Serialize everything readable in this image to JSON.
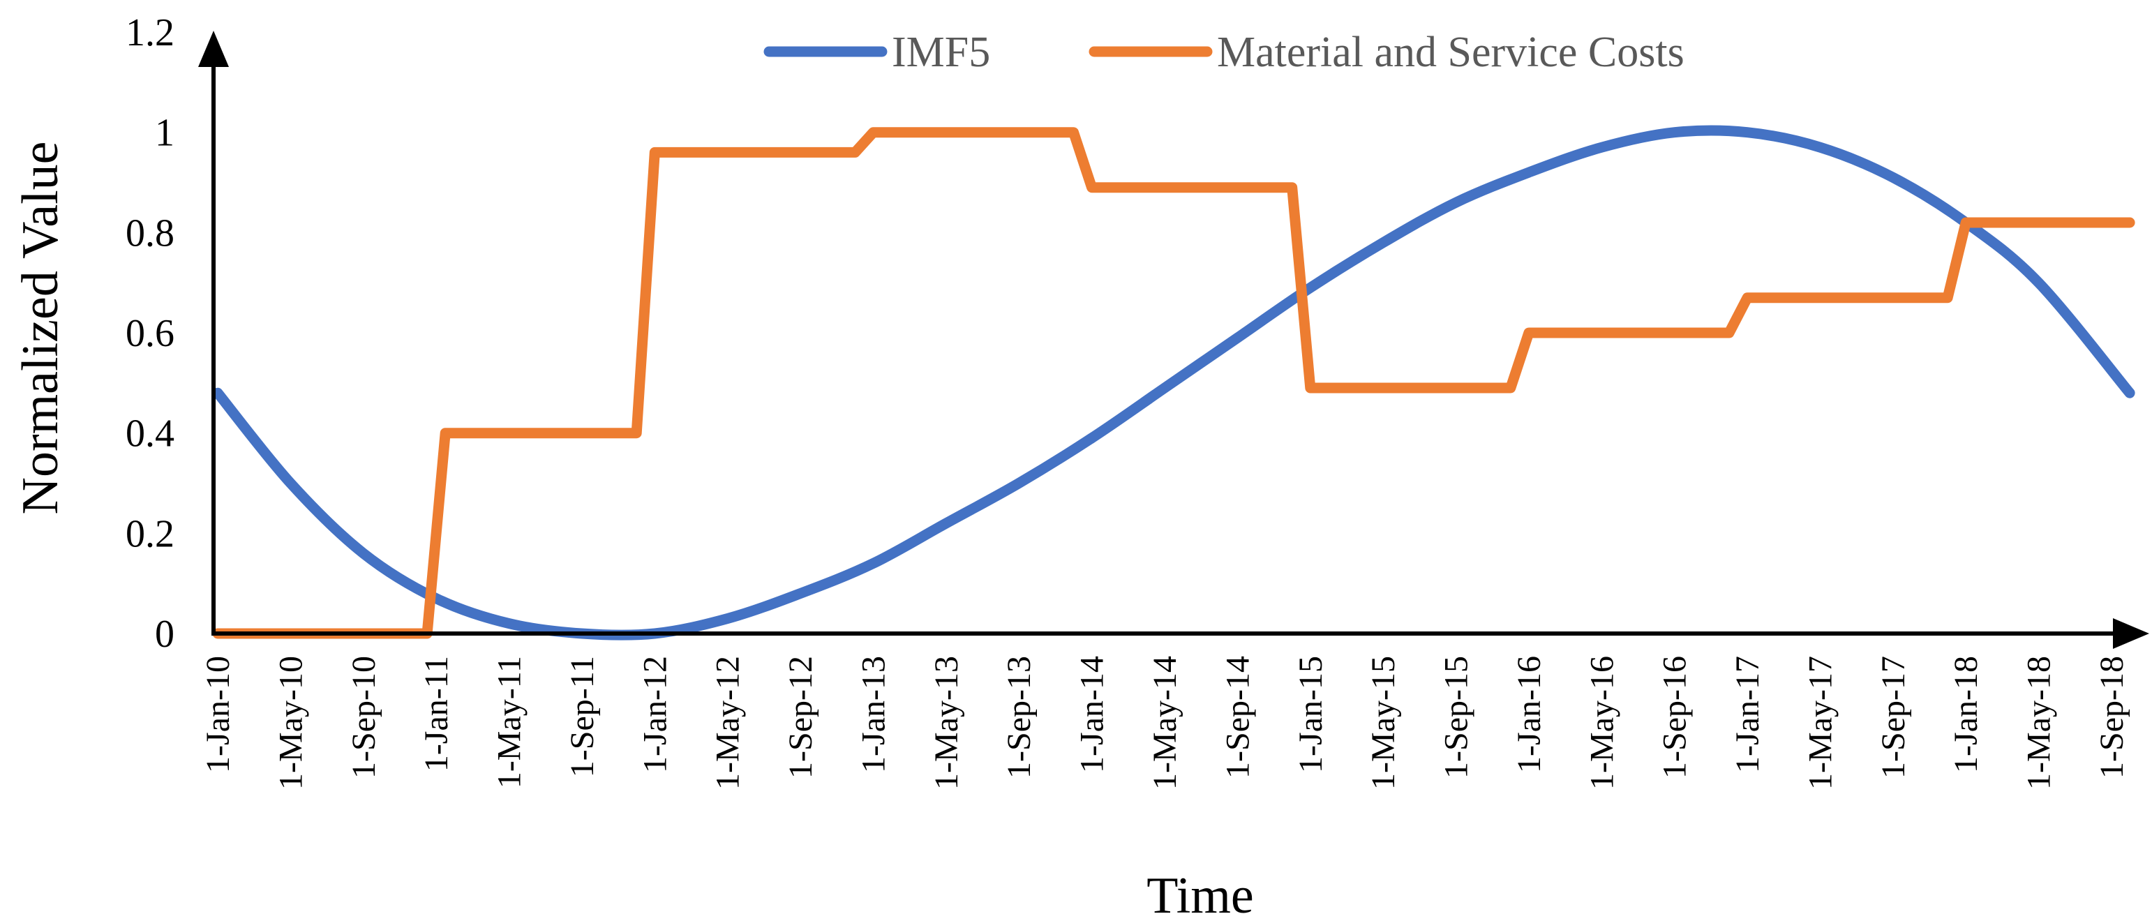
{
  "chart_data": {
    "type": "line",
    "title": "",
    "xlabel": "Time",
    "ylabel": "Normalized Value",
    "ylim": [
      0,
      1.2
    ],
    "y_ticks": [
      "0",
      "0.2",
      "0.4",
      "0.6",
      "0.8",
      "1",
      "1.2"
    ],
    "categories": [
      "1-Jan-10",
      "1-May-10",
      "1-Sep-10",
      "1-Jan-11",
      "1-May-11",
      "1-Sep-11",
      "1-Jan-12",
      "1-May-12",
      "1-Sep-12",
      "1-Jan-13",
      "1-May-13",
      "1-Sep-13",
      "1-Jan-14",
      "1-May-14",
      "1-Sep-14",
      "1-Jan-15",
      "1-May-15",
      "1-Sep-15",
      "1-Jan-16",
      "1-May-16",
      "1-Sep-16",
      "1-Jan-17",
      "1-May-17",
      "1-Sep-17",
      "1-Jan-18",
      "1-May-18",
      "1-Sep-18"
    ],
    "x_unit": "months since 1-Jan-10",
    "legend_position": "top",
    "grid": false,
    "series": [
      {
        "name": "IMF5",
        "color": "#4472C4",
        "points": [
          [
            0,
            0.48
          ],
          [
            4,
            0.3
          ],
          [
            8,
            0.16
          ],
          [
            12,
            0.07
          ],
          [
            16,
            0.02
          ],
          [
            20,
            0.0
          ],
          [
            24,
            0.0
          ],
          [
            28,
            0.03
          ],
          [
            32,
            0.08
          ],
          [
            36,
            0.14
          ],
          [
            40,
            0.22
          ],
          [
            44,
            0.3
          ],
          [
            48,
            0.39
          ],
          [
            52,
            0.49
          ],
          [
            56,
            0.59
          ],
          [
            60,
            0.69
          ],
          [
            64,
            0.78
          ],
          [
            68,
            0.86
          ],
          [
            72,
            0.92
          ],
          [
            76,
            0.97
          ],
          [
            80,
            1.0
          ],
          [
            84,
            1.0
          ],
          [
            88,
            0.97
          ],
          [
            92,
            0.91
          ],
          [
            96,
            0.82
          ],
          [
            100,
            0.7
          ],
          [
            105,
            0.48
          ]
        ]
      },
      {
        "name": "Material and Service Costs",
        "color": "#ED7D31",
        "points": [
          [
            0,
            0
          ],
          [
            11.5,
            0
          ],
          [
            12.5,
            0.4
          ],
          [
            23,
            0.4
          ],
          [
            24,
            0.96
          ],
          [
            35,
            0.96
          ],
          [
            36,
            1.0
          ],
          [
            47,
            1.0
          ],
          [
            48,
            0.89
          ],
          [
            59,
            0.89
          ],
          [
            60,
            0.49
          ],
          [
            71,
            0.49
          ],
          [
            72,
            0.6
          ],
          [
            83,
            0.6
          ],
          [
            84,
            0.67
          ],
          [
            95,
            0.67
          ],
          [
            96,
            0.82
          ],
          [
            105,
            0.82
          ]
        ]
      }
    ]
  }
}
